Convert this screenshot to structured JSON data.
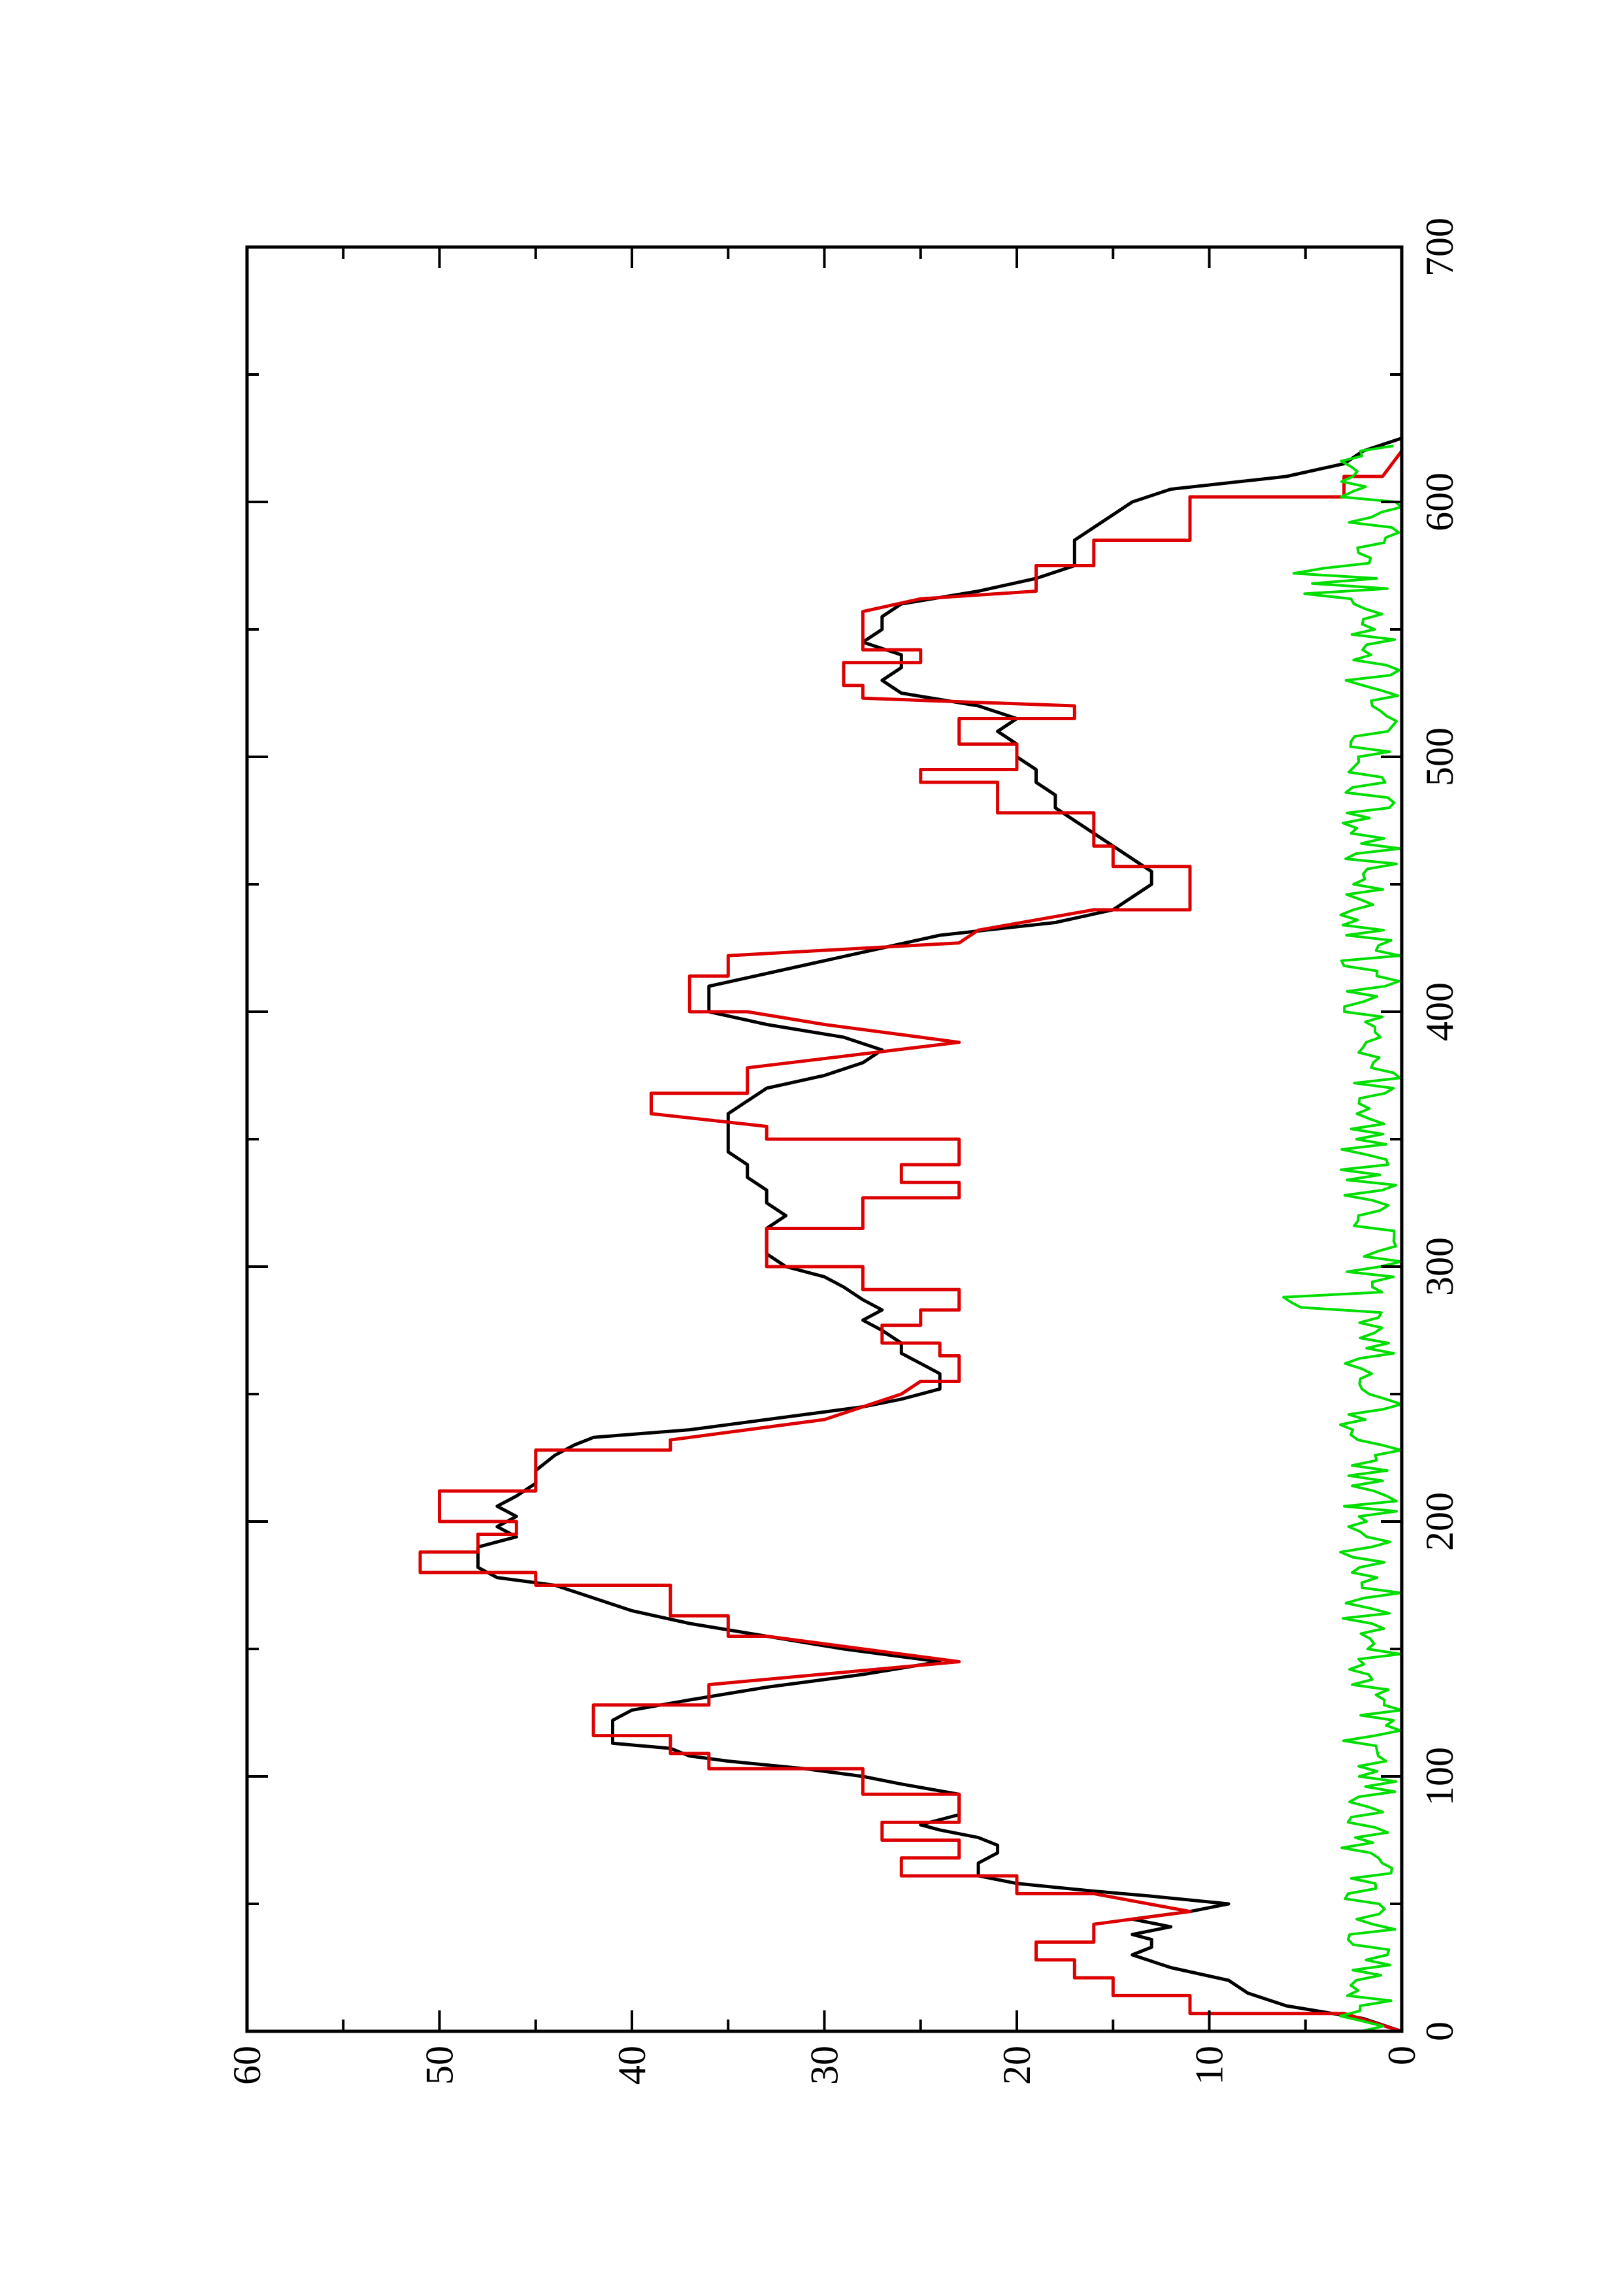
{
  "chart_data": {
    "type": "line",
    "title": "",
    "xlabel": "",
    "ylabel": "",
    "xlim": [
      0,
      700
    ],
    "ylim": [
      0,
      60
    ],
    "x_ticks": [
      0,
      100,
      200,
      300,
      400,
      500,
      600,
      700
    ],
    "y_ticks": [
      0,
      10,
      20,
      30,
      40,
      50,
      60
    ],
    "grid": false,
    "legend": "none",
    "series": [
      {
        "color": "#000000",
        "points": [
          [
            0,
            0
          ],
          [
            5,
            2
          ],
          [
            10,
            6
          ],
          [
            15,
            8
          ],
          [
            20,
            9
          ],
          [
            25,
            12
          ],
          [
            30,
            14
          ],
          [
            33,
            13
          ],
          [
            36,
            13
          ],
          [
            38,
            14
          ],
          [
            41,
            12
          ],
          [
            44,
            14
          ],
          [
            47,
            11
          ],
          [
            50,
            9
          ],
          [
            53,
            13
          ],
          [
            55,
            16
          ],
          [
            58,
            20
          ],
          [
            61,
            22
          ],
          [
            66,
            22
          ],
          [
            70,
            21
          ],
          [
            73,
            21
          ],
          [
            76,
            22
          ],
          [
            79,
            24
          ],
          [
            81,
            25
          ],
          [
            85,
            23
          ],
          [
            88,
            23
          ],
          [
            93,
            23
          ],
          [
            97,
            26
          ],
          [
            100,
            28
          ],
          [
            103,
            31
          ],
          [
            106,
            35
          ],
          [
            108,
            37
          ],
          [
            111,
            38
          ],
          [
            113,
            41
          ],
          [
            117,
            41
          ],
          [
            122,
            41
          ],
          [
            126,
            40
          ],
          [
            130,
            37
          ],
          [
            135,
            33
          ],
          [
            140,
            28
          ],
          [
            145,
            24
          ],
          [
            150,
            29
          ],
          [
            155,
            33
          ],
          [
            160,
            37
          ],
          [
            165,
            40
          ],
          [
            170,
            42
          ],
          [
            175,
            44
          ],
          [
            178,
            47
          ],
          [
            182,
            48
          ],
          [
            186,
            48
          ],
          [
            190,
            48
          ],
          [
            194,
            46
          ],
          [
            198,
            47
          ],
          [
            202,
            46
          ],
          [
            206,
            47
          ],
          [
            210,
            46
          ],
          [
            215,
            45
          ],
          [
            220,
            45
          ],
          [
            226,
            44
          ],
          [
            230,
            43
          ],
          [
            233,
            42
          ],
          [
            236,
            37
          ],
          [
            240,
            33
          ],
          [
            245,
            28
          ],
          [
            248,
            26
          ],
          [
            252,
            24
          ],
          [
            258,
            24
          ],
          [
            262,
            25
          ],
          [
            266,
            26
          ],
          [
            270,
            26
          ],
          [
            275,
            27
          ],
          [
            279,
            28
          ],
          [
            283,
            27
          ],
          [
            287,
            28
          ],
          [
            292,
            29
          ],
          [
            296,
            30
          ],
          [
            300,
            32
          ],
          [
            305,
            33
          ],
          [
            310,
            33
          ],
          [
            315,
            33
          ],
          [
            320,
            32
          ],
          [
            325,
            33
          ],
          [
            330,
            33
          ],
          [
            335,
            34
          ],
          [
            340,
            34
          ],
          [
            345,
            35
          ],
          [
            350,
            35
          ],
          [
            355,
            35
          ],
          [
            360,
            35
          ],
          [
            365,
            34
          ],
          [
            370,
            33
          ],
          [
            375,
            30
          ],
          [
            380,
            28
          ],
          [
            385,
            27
          ],
          [
            390,
            29
          ],
          [
            395,
            33
          ],
          [
            400,
            36
          ],
          [
            405,
            36
          ],
          [
            410,
            36
          ],
          [
            415,
            33
          ],
          [
            420,
            30
          ],
          [
            425,
            27
          ],
          [
            430,
            24
          ],
          [
            435,
            18
          ],
          [
            440,
            15
          ],
          [
            445,
            14
          ],
          [
            450,
            13
          ],
          [
            455,
            13
          ],
          [
            460,
            14
          ],
          [
            465,
            15
          ],
          [
            470,
            16
          ],
          [
            475,
            17
          ],
          [
            480,
            18
          ],
          [
            485,
            18
          ],
          [
            490,
            19
          ],
          [
            495,
            19
          ],
          [
            500,
            20
          ],
          [
            505,
            20
          ],
          [
            510,
            21
          ],
          [
            515,
            20
          ],
          [
            520,
            22
          ],
          [
            525,
            26
          ],
          [
            530,
            27
          ],
          [
            535,
            26
          ],
          [
            540,
            26
          ],
          [
            545,
            28
          ],
          [
            550,
            27
          ],
          [
            555,
            27
          ],
          [
            560,
            26
          ],
          [
            565,
            22
          ],
          [
            570,
            19
          ],
          [
            575,
            17
          ],
          [
            580,
            17
          ],
          [
            585,
            17
          ],
          [
            590,
            16
          ],
          [
            595,
            15
          ],
          [
            600,
            14
          ],
          [
            605,
            12
          ],
          [
            610,
            6
          ],
          [
            615,
            3
          ],
          [
            620,
            2
          ],
          [
            625,
            0
          ]
        ]
      },
      {
        "color": "#dd0000",
        "points": [
          [
            0,
            0
          ],
          [
            7,
            3
          ],
          [
            7,
            11
          ],
          [
            14,
            11
          ],
          [
            14,
            15
          ],
          [
            21,
            15
          ],
          [
            21,
            17
          ],
          [
            28,
            17
          ],
          [
            28,
            19
          ],
          [
            35,
            19
          ],
          [
            35,
            16
          ],
          [
            42,
            16
          ],
          [
            47,
            11
          ],
          [
            54,
            16
          ],
          [
            54,
            20
          ],
          [
            61,
            20
          ],
          [
            61,
            26
          ],
          [
            68,
            26
          ],
          [
            68,
            23
          ],
          [
            75,
            23
          ],
          [
            75,
            27
          ],
          [
            82,
            27
          ],
          [
            82,
            23
          ],
          [
            93,
            23
          ],
          [
            93,
            28
          ],
          [
            103,
            28
          ],
          [
            103,
            36
          ],
          [
            109,
            36
          ],
          [
            109,
            38
          ],
          [
            116,
            38
          ],
          [
            116,
            42
          ],
          [
            128,
            42
          ],
          [
            128,
            36
          ],
          [
            136,
            36
          ],
          [
            145,
            23
          ],
          [
            155,
            33
          ],
          [
            155,
            35
          ],
          [
            163,
            35
          ],
          [
            163,
            38
          ],
          [
            175,
            38
          ],
          [
            175,
            45
          ],
          [
            180,
            45
          ],
          [
            180,
            51
          ],
          [
            188,
            51
          ],
          [
            188,
            48
          ],
          [
            195,
            48
          ],
          [
            195,
            46
          ],
          [
            200,
            46
          ],
          [
            200,
            50
          ],
          [
            212,
            50
          ],
          [
            212,
            45
          ],
          [
            228,
            45
          ],
          [
            228,
            38
          ],
          [
            232,
            38
          ],
          [
            240,
            30
          ],
          [
            250,
            26
          ],
          [
            255,
            25
          ],
          [
            255,
            23
          ],
          [
            265,
            23
          ],
          [
            265,
            24
          ],
          [
            270,
            24
          ],
          [
            270,
            27
          ],
          [
            277,
            27
          ],
          [
            277,
            25
          ],
          [
            283,
            25
          ],
          [
            283,
            23
          ],
          [
            291,
            23
          ],
          [
            291,
            28
          ],
          [
            300,
            28
          ],
          [
            300,
            33
          ],
          [
            315,
            33
          ],
          [
            315,
            28
          ],
          [
            327,
            28
          ],
          [
            327,
            23
          ],
          [
            333,
            23
          ],
          [
            333,
            26
          ],
          [
            340,
            26
          ],
          [
            340,
            23
          ],
          [
            350,
            23
          ],
          [
            350,
            33
          ],
          [
            355,
            33
          ],
          [
            360,
            39
          ],
          [
            368,
            39
          ],
          [
            368,
            34
          ],
          [
            378,
            34
          ],
          [
            388,
            23
          ],
          [
            395,
            30
          ],
          [
            400,
            34
          ],
          [
            400,
            37
          ],
          [
            414,
            37
          ],
          [
            414,
            35
          ],
          [
            422,
            35
          ],
          [
            427,
            23
          ],
          [
            432,
            22
          ],
          [
            440,
            16
          ],
          [
            440,
            11
          ],
          [
            457,
            11
          ],
          [
            457,
            15
          ],
          [
            465,
            15
          ],
          [
            465,
            16
          ],
          [
            478,
            16
          ],
          [
            478,
            21
          ],
          [
            490,
            21
          ],
          [
            490,
            25
          ],
          [
            495,
            25
          ],
          [
            495,
            20
          ],
          [
            505,
            20
          ],
          [
            505,
            23
          ],
          [
            515,
            23
          ],
          [
            515,
            17
          ],
          [
            520,
            17
          ],
          [
            523,
            28
          ],
          [
            528,
            28
          ],
          [
            528,
            29
          ],
          [
            537,
            29
          ],
          [
            537,
            25
          ],
          [
            542,
            25
          ],
          [
            542,
            28
          ],
          [
            557,
            28
          ],
          [
            562,
            25
          ],
          [
            565,
            19
          ],
          [
            575,
            19
          ],
          [
            575,
            16
          ],
          [
            585,
            16
          ],
          [
            585,
            11
          ],
          [
            602,
            11
          ],
          [
            602,
            3
          ],
          [
            610,
            3
          ],
          [
            610,
            1
          ],
          [
            620,
            0
          ]
        ]
      },
      {
        "color": "#00dd00",
        "points": "noise",
        "note": ""
      }
    ]
  }
}
